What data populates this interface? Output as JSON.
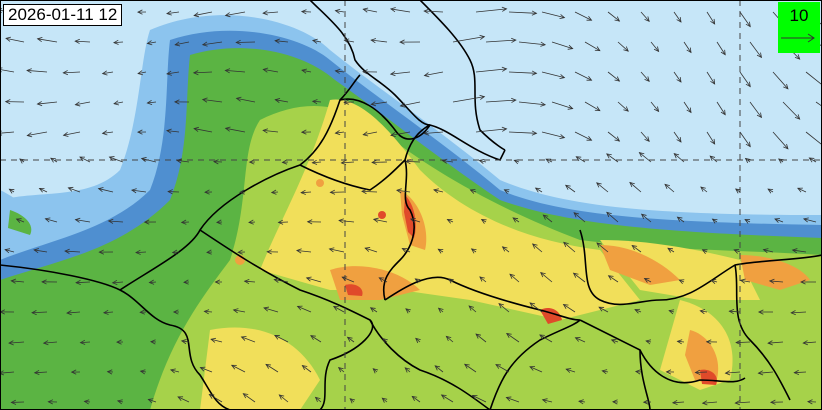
{
  "map": {
    "timestamp": "2026-01-11 12",
    "reference_vector": {
      "label": "10"
    },
    "colors": {
      "background": "#c6e6f8",
      "low": "#8cc4ee",
      "low_mid": "#4f8fd0",
      "green": "#5bb443",
      "light_green": "#a6d24a",
      "yellow": "#f1df5a",
      "orange": "#f0a040",
      "red": "#e04a2a",
      "legend_box": "#00ff00"
    },
    "gridlines": "dashed",
    "features": [
      "administrative-borders",
      "wind-vectors",
      "concentration-field"
    ]
  }
}
